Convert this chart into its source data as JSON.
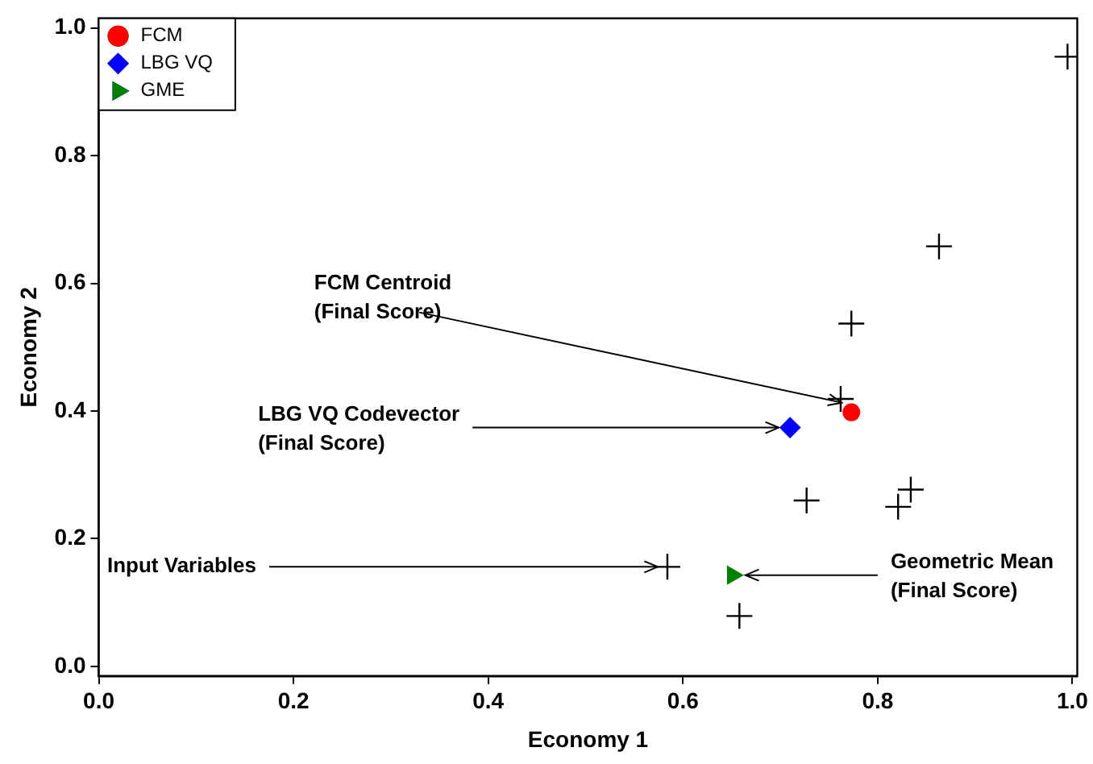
{
  "chart_data": {
    "type": "scatter",
    "xlabel": "Economy 1",
    "ylabel": "Economy 2",
    "xlim": [
      0,
      1.005
    ],
    "ylim": [
      -0.015,
      1.015
    ],
    "xticks": [
      {
        "value": 0,
        "label": "0.0"
      },
      {
        "value": 0.2,
        "label": "0.2"
      },
      {
        "value": 0.4,
        "label": "0.4"
      },
      {
        "value": 0.6,
        "label": "0.6"
      },
      {
        "value": 0.8,
        "label": "0.8"
      },
      {
        "value": 1,
        "label": "1.0"
      }
    ],
    "yticks": [
      {
        "value": 0,
        "label": "0.0"
      },
      {
        "value": 0.2,
        "label": "0.2"
      },
      {
        "value": 0.4,
        "label": "0.4"
      },
      {
        "value": 0.6,
        "label": "0.6"
      },
      {
        "value": 0.8,
        "label": "0.8"
      },
      {
        "value": 1,
        "label": "1.0"
      }
    ],
    "grid": false,
    "legend": "top left",
    "series": [
      {
        "color": "#000000",
        "marker": "cross",
        "x": [
          0.995,
          0.863,
          0.773,
          0.762,
          0.727,
          0.834,
          0.821,
          0.584,
          0.658
        ],
        "values": [
          0.955,
          0.658,
          0.537,
          0.419,
          0.26,
          0.277,
          0.25,
          0.156,
          0.079
        ]
      },
      {
        "name": "FCM",
        "color": "#ff0000",
        "marker": "circle",
        "x": [
          0.773
        ],
        "values": [
          0.398
        ]
      },
      {
        "name": "LBG VQ",
        "color": "#0000ff",
        "marker": "diamond",
        "x": [
          0.71
        ],
        "values": [
          0.374
        ]
      },
      {
        "name": "GME",
        "color": "#008000",
        "marker": "triangle",
        "x": [
          0.651
        ],
        "values": [
          0.143
        ]
      }
    ],
    "annotations": [
      {
        "text": "FCM Centroid\n(Final Score)",
        "x": 0.773,
        "y": 0.398
      },
      {
        "text": "LBG VQ Codevector\n(Final Score)",
        "x": 0.71,
        "y": 0.374
      },
      {
        "text": "Input Variables",
        "x": 0.584,
        "y": 0.156
      },
      {
        "text": "Geometric Mean\n(Final Score)",
        "x": 0.651,
        "y": 0.143
      }
    ]
  }
}
